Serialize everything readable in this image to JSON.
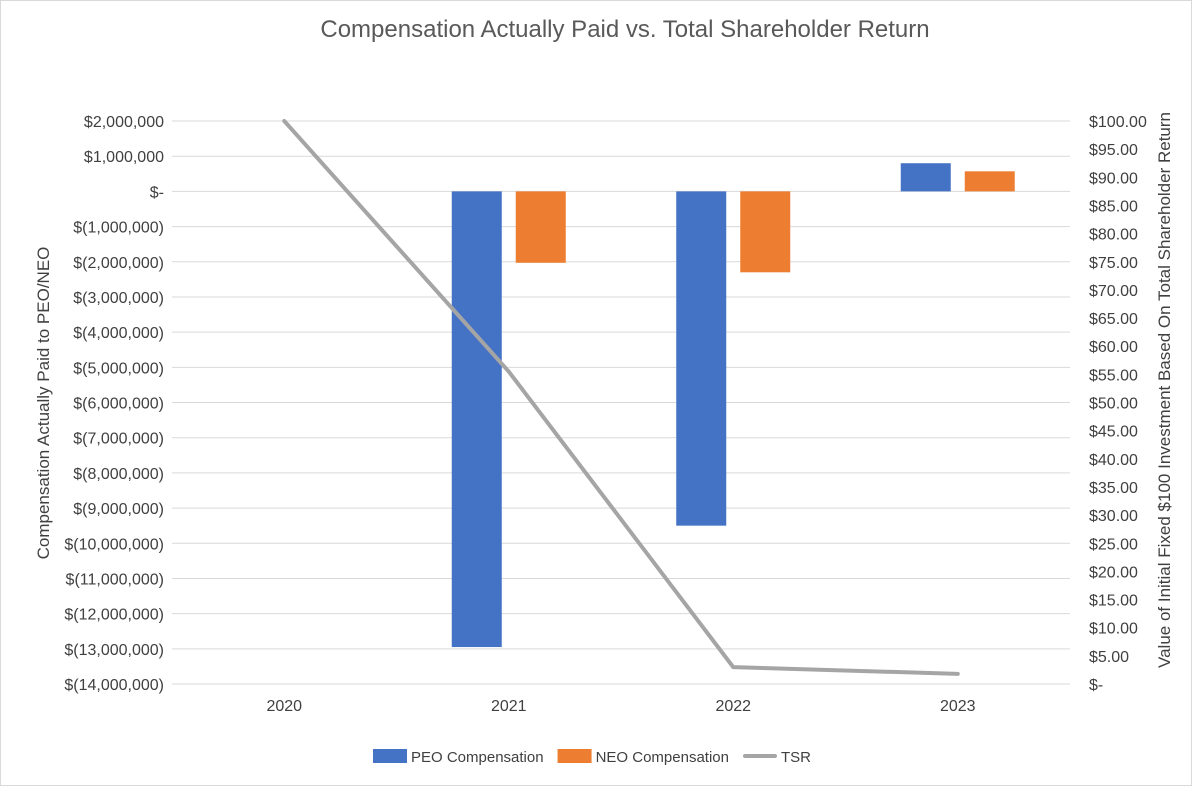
{
  "chart_data": {
    "type": "bar",
    "title": "Compensation Actually Paid vs. Total Shareholder Return",
    "categories": [
      "2020",
      "2021",
      "2022",
      "2023"
    ],
    "ylabel": "Compensation Actually Paid to PEO/NEO",
    "y2label": "Value of Initial Fixed $100 Investment Based On Total Shareholder Return",
    "ylim": [
      -14000000,
      2000000
    ],
    "y2lim": [
      0,
      100
    ],
    "y_ticks": [
      {
        "value": 2000000,
        "label": "$2,000,000"
      },
      {
        "value": 1000000,
        "label": "$1,000,000"
      },
      {
        "value": 0,
        "label": "$-"
      },
      {
        "value": -1000000,
        "label": "$(1,000,000)"
      },
      {
        "value": -2000000,
        "label": "$(2,000,000)"
      },
      {
        "value": -3000000,
        "label": "$(3,000,000)"
      },
      {
        "value": -4000000,
        "label": "$(4,000,000)"
      },
      {
        "value": -5000000,
        "label": "$(5,000,000)"
      },
      {
        "value": -6000000,
        "label": "$(6,000,000)"
      },
      {
        "value": -7000000,
        "label": "$(7,000,000)"
      },
      {
        "value": -8000000,
        "label": "$(8,000,000)"
      },
      {
        "value": -9000000,
        "label": "$(9,000,000)"
      },
      {
        "value": -10000000,
        "label": "$(10,000,000)"
      },
      {
        "value": -11000000,
        "label": "$(11,000,000)"
      },
      {
        "value": -12000000,
        "label": "$(12,000,000)"
      },
      {
        "value": -13000000,
        "label": "$(13,000,000)"
      },
      {
        "value": -14000000,
        "label": "$(14,000,000)"
      }
    ],
    "y2_ticks": [
      {
        "value": 100,
        "label": "$100.00"
      },
      {
        "value": 95,
        "label": "$95.00"
      },
      {
        "value": 90,
        "label": "$90.00"
      },
      {
        "value": 85,
        "label": "$85.00"
      },
      {
        "value": 80,
        "label": "$80.00"
      },
      {
        "value": 75,
        "label": "$75.00"
      },
      {
        "value": 70,
        "label": "$70.00"
      },
      {
        "value": 65,
        "label": "$65.00"
      },
      {
        "value": 60,
        "label": "$60.00"
      },
      {
        "value": 55,
        "label": "$55.00"
      },
      {
        "value": 50,
        "label": "$50.00"
      },
      {
        "value": 45,
        "label": "$45.00"
      },
      {
        "value": 40,
        "label": "$40.00"
      },
      {
        "value": 35,
        "label": "$35.00"
      },
      {
        "value": 30,
        "label": "$30.00"
      },
      {
        "value": 25,
        "label": "$25.00"
      },
      {
        "value": 20,
        "label": "$20.00"
      },
      {
        "value": 15,
        "label": "$15.00"
      },
      {
        "value": 10,
        "label": "$10.00"
      },
      {
        "value": 5,
        "label": "$5.00"
      },
      {
        "value": 0,
        "label": "$-"
      }
    ],
    "series": [
      {
        "name": "PEO Compensation",
        "type": "bar",
        "axis": "left",
        "color": "#4472c4",
        "values": [
          0,
          -12950000,
          -9500000,
          800000
        ]
      },
      {
        "name": "NEO Compensation",
        "type": "bar",
        "axis": "left",
        "color": "#ed7d31",
        "values": [
          0,
          -2030000,
          -2300000,
          570000
        ]
      },
      {
        "name": "TSR",
        "type": "line",
        "axis": "right",
        "color": "#a5a5a5",
        "values": [
          100,
          55.5,
          3,
          1.8
        ]
      }
    ],
    "legend_position": "bottom",
    "grid": true
  }
}
